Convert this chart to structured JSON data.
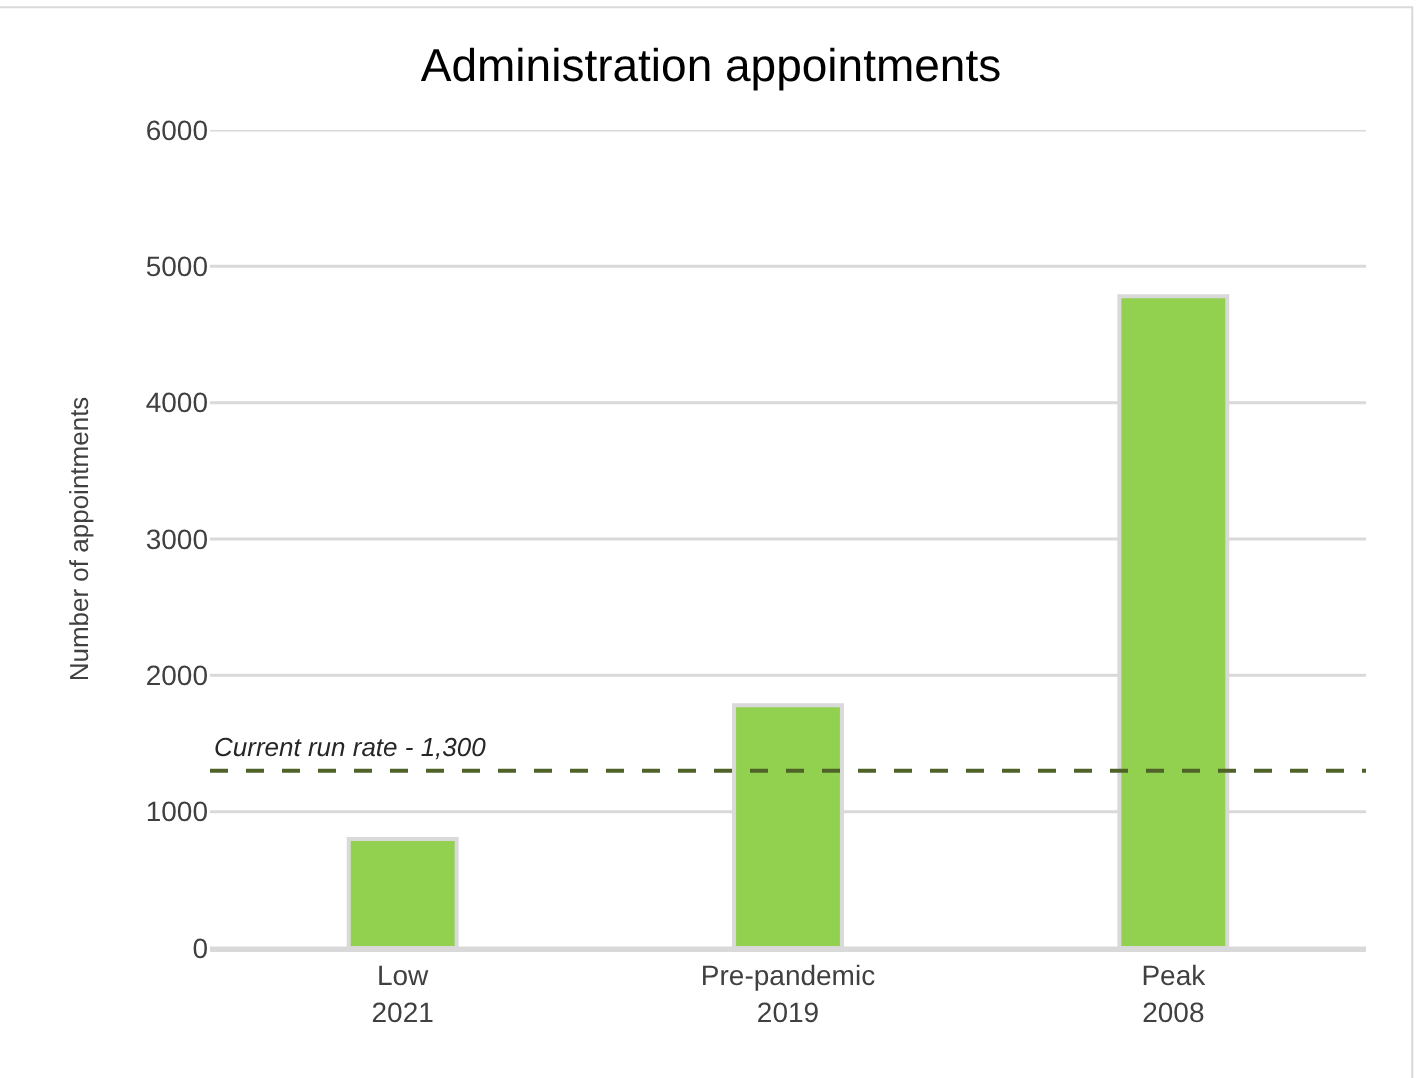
{
  "chart_data": {
    "type": "bar",
    "title": "Administration appointments",
    "ylabel": "Number of appointments",
    "categories": [
      "Low\n2021",
      "Pre-pandemic\n2019",
      "Peak\n2008"
    ],
    "values": [
      800,
      1780,
      4780
    ],
    "color": "#92d050",
    "ylim": [
      0,
      6000
    ],
    "yticks": [
      0,
      1000,
      2000,
      3000,
      4000,
      5000,
      6000
    ],
    "grid": "y",
    "ref_lines": [
      {
        "axis": "y",
        "value": 1300,
        "label": "Current run rate - 1,300",
        "color": "#4f6228",
        "line_style": "dashed"
      }
    ]
  }
}
